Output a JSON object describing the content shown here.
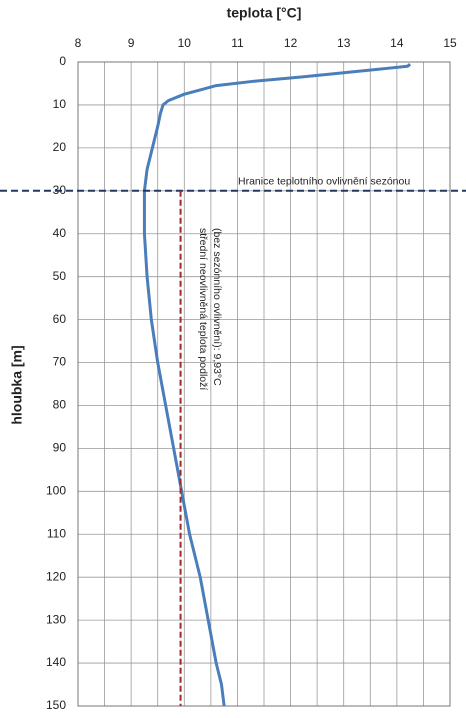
{
  "chart_data": {
    "type": "line",
    "xlabel": "teplota [°C]",
    "ylabel": "hloubka [m]",
    "xlim": [
      8,
      15
    ],
    "xticks": [
      8,
      9,
      10,
      11,
      12,
      13,
      14,
      15
    ],
    "xminor": [
      8.5,
      9.5,
      10.5,
      11.5,
      12.5,
      13.5,
      14.5
    ],
    "ylim": [
      0,
      150
    ],
    "yticks": [
      0,
      10,
      20,
      30,
      40,
      50,
      60,
      70,
      80,
      90,
      100,
      110,
      120,
      130,
      140,
      150
    ],
    "y_inverted": true,
    "grid": true,
    "series": [
      {
        "color": "#4a7ebb",
        "x": [
          14.25,
          14.2,
          13.8,
          13.0,
          12.2,
          11.3,
          10.6,
          10.3,
          10.0,
          9.7,
          9.6,
          9.55,
          9.5,
          9.4,
          9.3,
          9.25,
          9.25,
          9.3,
          9.38,
          9.5,
          9.65,
          9.8,
          9.95,
          10.1,
          10.3,
          10.45,
          10.6,
          10.7,
          10.75
        ],
        "y": [
          0.5,
          1,
          1.5,
          2.5,
          3.5,
          4.5,
          5.5,
          6.5,
          7.5,
          9,
          10,
          12,
          15,
          20,
          25,
          30,
          40,
          50,
          60,
          70,
          80,
          90,
          100,
          110,
          120,
          130,
          140,
          145,
          150
        ]
      }
    ],
    "hlines": [
      {
        "value": 30,
        "color": "#1f3864",
        "label": "Hranice teplotního ovlivnění sezónou"
      }
    ],
    "vlines": [
      {
        "value": 9.93,
        "from": 30,
        "color": "#a0282d",
        "label": [
          "střední neovlivněná teplota podloží",
          "(bez sezónního ovlivnění): 9,93°C"
        ]
      }
    ]
  }
}
